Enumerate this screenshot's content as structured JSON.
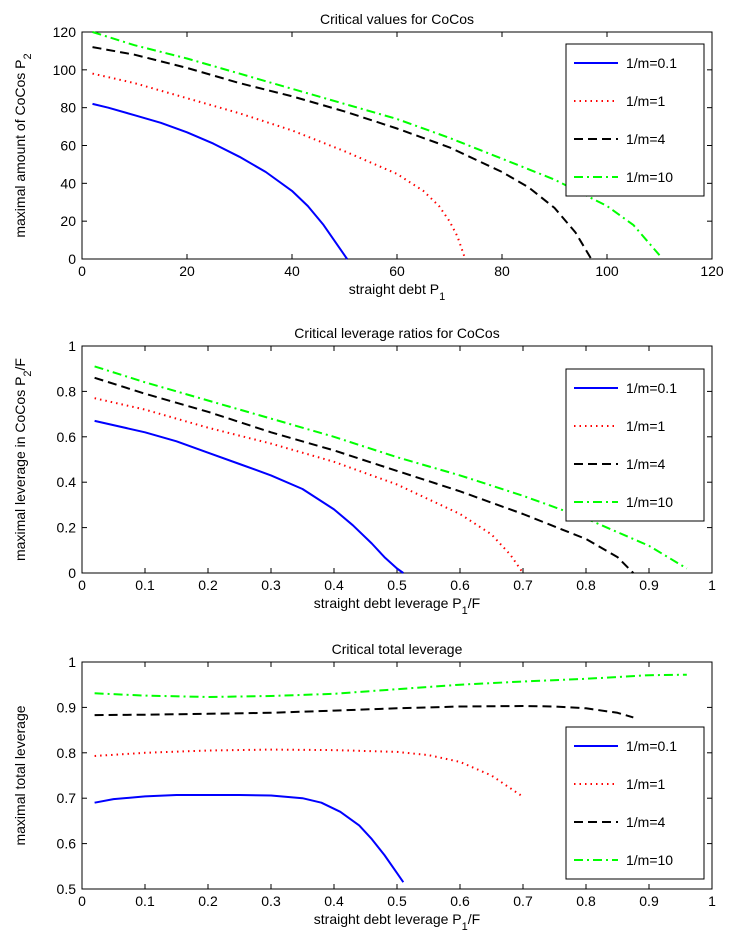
{
  "chart_data": [
    {
      "type": "line",
      "title": "Critical values for CoCos",
      "xlabel": "straight debt P",
      "xlabel_sub": "1",
      "ylabel": "maximal amount of CoCos P",
      "ylabel_sub": "2",
      "xlim": [
        0,
        120
      ],
      "ylim": [
        0,
        120
      ],
      "xticks": [
        0,
        20,
        40,
        60,
        80,
        100,
        120
      ],
      "yticks": [
        0,
        20,
        40,
        60,
        80,
        100,
        120
      ],
      "xtick_labels": [
        "0",
        "20",
        "40",
        "60",
        "80",
        "100",
        "120"
      ],
      "ytick_labels": [
        "0",
        "20",
        "40",
        "60",
        "80",
        "100",
        "120"
      ],
      "legend_position": "top-right",
      "series": [
        {
          "name": "1/m=0.1",
          "color": "#0000ff",
          "dash": "solid",
          "x": [
            2,
            5,
            10,
            15,
            20,
            25,
            30,
            35,
            40,
            43,
            46,
            48,
            49.5,
            50.5
          ],
          "y": [
            82,
            80,
            76,
            72,
            67,
            61,
            54,
            46,
            36,
            28,
            18,
            10,
            4,
            0
          ]
        },
        {
          "name": "1/m=1",
          "color": "#ff0000",
          "dash": "dotted",
          "x": [
            2,
            10,
            20,
            30,
            40,
            50,
            60,
            65,
            68,
            70,
            71.5,
            72.5,
            73
          ],
          "y": [
            98,
            93,
            85,
            77,
            68,
            57,
            45,
            36,
            28,
            20,
            12,
            4,
            0
          ]
        },
        {
          "name": "1/m=4",
          "color": "#000000",
          "dash": "dashed",
          "x": [
            2,
            10,
            20,
            30,
            40,
            50,
            60,
            70,
            80,
            85,
            90,
            94,
            97
          ],
          "y": [
            112,
            108,
            101,
            93,
            86,
            78,
            69,
            59,
            46,
            38,
            27,
            14,
            0
          ]
        },
        {
          "name": "1/m=10",
          "color": "#00ff00",
          "dash": "dashdot",
          "x": [
            2,
            10,
            20,
            30,
            40,
            50,
            60,
            70,
            80,
            90,
            100,
            105,
            110
          ],
          "y": [
            120,
            113,
            106,
            98,
            90,
            82,
            74,
            64,
            53,
            42,
            28,
            18,
            2
          ]
        }
      ]
    },
    {
      "type": "line",
      "title": "Critical leverage ratios for CoCos",
      "xlabel": "straight debt leverage P",
      "xlabel_sub": "1",
      "xlabel_suffix": "/F",
      "ylabel": "maximal leverage in CoCos P",
      "ylabel_sub": "2",
      "ylabel_suffix": "/F",
      "xlim": [
        0,
        1
      ],
      "ylim": [
        0,
        1
      ],
      "xticks": [
        0,
        0.1,
        0.2,
        0.3,
        0.4,
        0.5,
        0.6,
        0.7,
        0.8,
        0.9,
        1
      ],
      "yticks": [
        0,
        0.2,
        0.4,
        0.6,
        0.8,
        1
      ],
      "xtick_labels": [
        "0",
        "0.1",
        "0.2",
        "0.3",
        "0.4",
        "0.5",
        "0.6",
        "0.7",
        "0.8",
        "0.9",
        "1"
      ],
      "ytick_labels": [
        "0",
        "0.2",
        "0.4",
        "0.6",
        "0.8",
        "1"
      ],
      "legend_position": "top-right",
      "series": [
        {
          "name": "1/m=0.1",
          "color": "#0000ff",
          "dash": "solid",
          "x": [
            0.02,
            0.1,
            0.15,
            0.2,
            0.25,
            0.3,
            0.35,
            0.4,
            0.43,
            0.46,
            0.48,
            0.5,
            0.51
          ],
          "y": [
            0.67,
            0.62,
            0.58,
            0.53,
            0.48,
            0.43,
            0.37,
            0.28,
            0.21,
            0.13,
            0.07,
            0.02,
            0
          ]
        },
        {
          "name": "1/m=1",
          "color": "#ff0000",
          "dash": "dotted",
          "x": [
            0.02,
            0.1,
            0.2,
            0.3,
            0.4,
            0.5,
            0.6,
            0.65,
            0.68,
            0.7
          ],
          "y": [
            0.77,
            0.72,
            0.64,
            0.57,
            0.49,
            0.39,
            0.26,
            0.17,
            0.08,
            0
          ]
        },
        {
          "name": "1/m=4",
          "color": "#000000",
          "dash": "dashed",
          "x": [
            0.02,
            0.1,
            0.2,
            0.3,
            0.4,
            0.5,
            0.6,
            0.7,
            0.8,
            0.85,
            0.875
          ],
          "y": [
            0.86,
            0.79,
            0.71,
            0.62,
            0.54,
            0.45,
            0.36,
            0.26,
            0.15,
            0.07,
            0
          ]
        },
        {
          "name": "1/m=10",
          "color": "#00ff00",
          "dash": "dashdot",
          "x": [
            0.02,
            0.1,
            0.2,
            0.3,
            0.4,
            0.5,
            0.6,
            0.7,
            0.8,
            0.9,
            0.96
          ],
          "y": [
            0.91,
            0.84,
            0.76,
            0.68,
            0.6,
            0.51,
            0.43,
            0.34,
            0.24,
            0.12,
            0.02
          ]
        }
      ]
    },
    {
      "type": "line",
      "title": "Critical total leverage",
      "xlabel": "straight debt leverage P",
      "xlabel_sub": "1",
      "xlabel_suffix": "/F",
      "ylabel": "maximal total leverage",
      "xlim": [
        0,
        1
      ],
      "ylim": [
        0.5,
        1
      ],
      "xticks": [
        0,
        0.1,
        0.2,
        0.3,
        0.4,
        0.5,
        0.6,
        0.7,
        0.8,
        0.9,
        1
      ],
      "yticks": [
        0.5,
        0.6,
        0.7,
        0.8,
        0.9,
        1
      ],
      "xtick_labels": [
        "0",
        "0.1",
        "0.2",
        "0.3",
        "0.4",
        "0.5",
        "0.6",
        "0.7",
        "0.8",
        "0.9",
        "1"
      ],
      "ytick_labels": [
        "0.5",
        "0.6",
        "0.7",
        "0.8",
        "0.9",
        "1"
      ],
      "legend_position": "bottom-right",
      "series": [
        {
          "name": "1/m=0.1",
          "color": "#0000ff",
          "dash": "solid",
          "x": [
            0.02,
            0.05,
            0.1,
            0.15,
            0.2,
            0.25,
            0.3,
            0.35,
            0.38,
            0.41,
            0.44,
            0.46,
            0.48,
            0.5,
            0.51
          ],
          "y": [
            0.69,
            0.698,
            0.704,
            0.707,
            0.707,
            0.707,
            0.706,
            0.7,
            0.69,
            0.67,
            0.64,
            0.61,
            0.575,
            0.535,
            0.515
          ]
        },
        {
          "name": "1/m=1",
          "color": "#ff0000",
          "dash": "dotted",
          "x": [
            0.02,
            0.1,
            0.2,
            0.3,
            0.4,
            0.5,
            0.55,
            0.6,
            0.65,
            0.7
          ],
          "y": [
            0.793,
            0.8,
            0.805,
            0.807,
            0.806,
            0.802,
            0.795,
            0.78,
            0.75,
            0.703
          ]
        },
        {
          "name": "1/m=4",
          "color": "#000000",
          "dash": "dashed",
          "x": [
            0.02,
            0.1,
            0.2,
            0.3,
            0.4,
            0.5,
            0.6,
            0.7,
            0.75,
            0.8,
            0.85,
            0.875
          ],
          "y": [
            0.883,
            0.884,
            0.886,
            0.888,
            0.893,
            0.898,
            0.902,
            0.903,
            0.902,
            0.898,
            0.888,
            0.878
          ]
        },
        {
          "name": "1/m=10",
          "color": "#00ff00",
          "dash": "dashdot",
          "x": [
            0.02,
            0.1,
            0.2,
            0.3,
            0.4,
            0.5,
            0.6,
            0.7,
            0.8,
            0.9,
            0.96
          ],
          "y": [
            0.931,
            0.926,
            0.923,
            0.925,
            0.93,
            0.94,
            0.95,
            0.957,
            0.963,
            0.971,
            0.972
          ]
        }
      ]
    }
  ]
}
